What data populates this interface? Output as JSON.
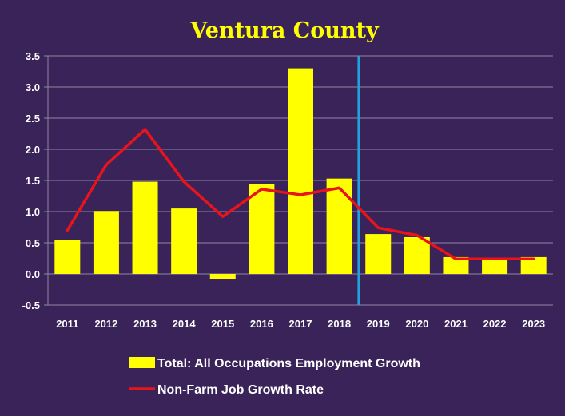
{
  "chart_data": {
    "type": "bar",
    "title": "Ventura County",
    "categories": [
      "2011",
      "2012",
      "2013",
      "2014",
      "2015",
      "2016",
      "2017",
      "2018",
      "2019",
      "2020",
      "2021",
      "2022",
      "2023"
    ],
    "series": [
      {
        "name": "Total: All Occupations Employment Growth",
        "kind": "bar",
        "color": "#ffff00",
        "values": [
          0.55,
          1.01,
          1.48,
          1.05,
          -0.08,
          1.44,
          3.3,
          1.53,
          0.64,
          0.59,
          0.27,
          0.24,
          0.27
        ]
      },
      {
        "name": "Non-Farm Job Growth Rate",
        "kind": "line",
        "color": "#e8141c",
        "values": [
          0.7,
          1.75,
          2.32,
          1.48,
          0.92,
          1.36,
          1.27,
          1.38,
          0.74,
          0.62,
          0.24,
          0.24,
          0.24
        ]
      }
    ],
    "ylim": [
      -0.5,
      3.5
    ],
    "yticks": [
      "-0.5",
      "0.0",
      "0.5",
      "1.0",
      "1.5",
      "2.0",
      "2.5",
      "3.0",
      "3.5"
    ],
    "grid": true,
    "divider_after_category": "2018",
    "divider_color": "#1fa3e0",
    "legend_position": "bottom",
    "background_color": "#3a2358",
    "xlabel": "",
    "ylabel": ""
  }
}
